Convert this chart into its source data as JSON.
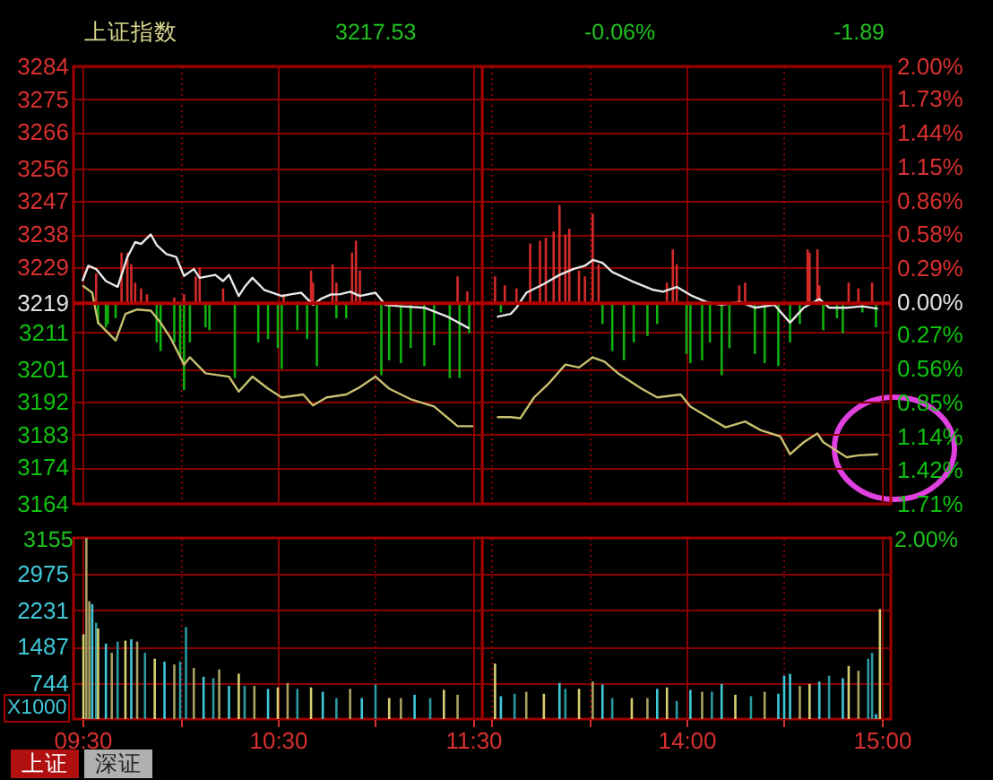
{
  "chart_data": [
    {
      "type": "line",
      "annotations": [
        "上证指数",
        "3217.53",
        "-0.06%",
        "-1.89"
      ],
      "xlim": [
        9.5,
        11.5
      ],
      "xticks": [
        {
          "value": 9.5,
          "label": null
        },
        {
          "value": 10,
          "label": null
        },
        {
          "value": 10.5,
          "label": null
        },
        {
          "value": 11,
          "label": null
        },
        {
          "value": 11.5,
          "label": null
        }
      ],
      "ylim": [
        3164,
        3284
      ],
      "yticks": [
        3164,
        3174,
        3183,
        3192,
        3201,
        3211,
        3219,
        3229,
        3238,
        3247,
        3256,
        3266,
        3275,
        3284
      ],
      "grid": true,
      "tick_labels": "y",
      "ref_lines": [
        {
          "axis": "y",
          "value": 3219,
          "color": "#b00000"
        }
      ],
      "series": [
        {
          "type": "bar",
          "color": "#d42a2a",
          "x": [
            9.57,
            9.7,
            9.73,
            9.75,
            9.77,
            9.8,
            9.83,
            9.97,
            10.02,
            10.08,
            10.1,
            10.22,
            10.53,
            10.67,
            10.68,
            10.78,
            10.8,
            10.88,
            10.9,
            10.92,
            11.42,
            11.47
          ],
          "values": [
            8.2,
            13.9,
            13.9,
            10.7,
            5.7,
            4.1,
            2.5,
            1.6,
            2.5,
            7.4,
            9.8,
            4.1,
            2.5,
            9.0,
            5.7,
            10.7,
            5.7,
            13.9,
            17.2,
            9.0,
            7.4,
            3.3
          ],
          "base": [
            3219,
            3219,
            3219,
            3219,
            3219,
            3219,
            3219,
            3219,
            3219,
            3219,
            3219,
            3219,
            3219,
            3219,
            3219,
            3219,
            3219,
            3219,
            3219,
            3219,
            3219,
            3219
          ]
        },
        {
          "type": "bar",
          "color": "#10b010",
          "x": [
            9.58,
            9.62,
            9.63,
            9.67,
            9.88,
            9.9,
            9.97,
            10,
            10.02,
            10.05,
            10.13,
            10.15,
            10.28,
            10.4,
            10.45,
            10.5,
            10.52,
            10.6,
            10.65,
            10.7,
            10.8,
            10.85,
            11.03,
            11.07,
            11.13,
            11.18,
            11.25,
            11.3,
            11.38,
            11.43,
            11.48
          ],
          "values": [
            -5.7,
            -6.6,
            -5.7,
            -4.1,
            -10.7,
            -13.1,
            -10.7,
            -14.8,
            -23.8,
            -10.7,
            -6.6,
            -7.4,
            -20.5,
            -10.7,
            -9.8,
            -12.3,
            -18.0,
            -7.4,
            -9.8,
            -17.2,
            -4.1,
            -4.1,
            -19.7,
            -15.6,
            -16.4,
            -12.3,
            -17.2,
            -11.5,
            -20.5,
            -20.5,
            -8.2
          ],
          "base": [
            3219,
            3219,
            3219,
            3219,
            3219,
            3219,
            3219,
            3219,
            3219,
            3219,
            3219,
            3219,
            3219,
            3219,
            3219,
            3219,
            3219,
            3219,
            3219,
            3219,
            3219,
            3219,
            3219,
            3219,
            3219,
            3219,
            3219,
            3219,
            3219,
            3219,
            3219
          ]
        },
        {
          "color": "#c8c070",
          "x": [
            9.5,
            9.55,
            9.58,
            9.67,
            9.72,
            9.78,
            9.85,
            9.9,
            9.95,
            10.02,
            10.05,
            10.13,
            10.25,
            10.3,
            10.37,
            10.45,
            10.52,
            10.63,
            10.68,
            10.75,
            10.85,
            10.92,
            11,
            11.07,
            11.18,
            11.3,
            11.42,
            11.5
          ],
          "values": [
            3223.9,
            3221.9,
            3213.7,
            3208.8,
            3216.1,
            3217.3,
            3217.0,
            3213.7,
            3209.6,
            3202.2,
            3204.2,
            3199.8,
            3198.9,
            3194.8,
            3198.9,
            3195.6,
            3193.2,
            3194.0,
            3191.0,
            3193.2,
            3194.0,
            3196.0,
            3198.9,
            3195.6,
            3192.7,
            3190.7,
            3185.3,
            3185.3
          ]
        },
        {
          "color": "#e8e8e8",
          "x": [
            9.5,
            9.53,
            9.57,
            9.62,
            9.68,
            9.73,
            9.77,
            9.8,
            9.85,
            9.88,
            9.93,
            9.98,
            10.02,
            10.07,
            10.1,
            10.18,
            10.22,
            10.25,
            10.3,
            10.33,
            10.37,
            10.43,
            10.52,
            10.57,
            10.62,
            10.68,
            10.72,
            10.77,
            10.82,
            10.87,
            10.92,
            11,
            11.05,
            11.13,
            11.25,
            11.37,
            11.48
          ],
          "values": [
            3225.1,
            3229.3,
            3228.4,
            3225.1,
            3223.5,
            3231.7,
            3235.8,
            3235.3,
            3237.9,
            3235.0,
            3232.5,
            3231.7,
            3226.5,
            3228.4,
            3226.0,
            3226.8,
            3225.1,
            3226.8,
            3221.0,
            3223.5,
            3226.0,
            3222.7,
            3221.0,
            3221.5,
            3221.9,
            3218.6,
            3220.2,
            3221.4,
            3221.5,
            3222.2,
            3221.0,
            3221.9,
            3218.6,
            3218.2,
            3217.8,
            3215.3,
            3212.1
          ]
        }
      ]
    },
    {
      "type": "line",
      "xlim": [
        13,
        15
      ],
      "xticks": [
        {
          "value": 13,
          "label": null
        },
        {
          "value": 13.5,
          "label": null
        },
        {
          "value": 14,
          "label": null
        },
        {
          "value": 14.5,
          "label": null
        },
        {
          "value": 15,
          "label": null
        }
      ],
      "ylim": [
        3164,
        3284
      ],
      "yticks": [
        3164,
        3174,
        3183,
        3192,
        3201,
        3211,
        3219,
        3229,
        3238,
        3247,
        3256,
        3266,
        3275,
        3284
      ],
      "y2lim": [
        -1.71,
        2.0
      ],
      "y2ticks": [
        {
          "value": -1.71,
          "label": "1.71%"
        },
        {
          "value": -1.42,
          "label": "1.42%"
        },
        {
          "value": -1.14,
          "label": "1.14%"
        },
        {
          "value": -0.85,
          "label": "0.85%"
        },
        {
          "value": -0.56,
          "label": "0.56%"
        },
        {
          "value": -0.27,
          "label": "0.27%"
        },
        {
          "value": 0,
          "label": "0.00%"
        },
        {
          "value": 0.29,
          "label": "0.29%"
        },
        {
          "value": 0.58,
          "label": "0.58%"
        },
        {
          "value": 0.86,
          "label": "0.86%"
        },
        {
          "value": 1.15,
          "label": "1.15%"
        },
        {
          "value": 1.44,
          "label": "1.44%"
        },
        {
          "value": 1.73,
          "label": "1.73%"
        },
        {
          "value": 2.0,
          "label": "2.00%"
        }
      ],
      "grid": true,
      "tick_labels": false,
      "ref_lines": [
        {
          "axis": "y",
          "value": 3219,
          "color": "#b00000"
        }
      ],
      "series": [
        {
          "type": "bar",
          "color": "#d42a2a",
          "x": [
            13.02,
            13.07,
            13.13,
            13.2,
            13.25,
            13.28,
            13.32,
            13.35,
            13.38,
            13.4,
            13.45,
            13.48,
            13.52,
            13.55,
            13.9,
            13.93,
            13.95,
            14.27,
            14.3,
            14.62,
            14.63,
            14.67,
            14.68,
            14.83,
            14.88,
            14.95
          ],
          "values": [
            7.4,
            4.9,
            4.1,
            16.4,
            17.2,
            18.0,
            19.7,
            27.0,
            18.9,
            20.5,
            9.0,
            7.4,
            24.6,
            10.7,
            5.7,
            14.8,
            10.7,
            4.9,
            5.7,
            14.8,
            13.9,
            14.8,
            4.9,
            5.7,
            4.1,
            5.7
          ],
          "base": [
            3219,
            3219,
            3219,
            3219,
            3219,
            3219,
            3219,
            3219,
            3219,
            3219,
            3219,
            3219,
            3219,
            3219,
            3219,
            3219,
            3219,
            3219,
            3219,
            3219,
            3219,
            3219,
            3219,
            3219,
            3219,
            3219
          ]
        },
        {
          "type": "bar",
          "color": "#10b010",
          "x": [
            13.05,
            13.57,
            13.62,
            13.68,
            13.73,
            13.8,
            13.85,
            14,
            14.02,
            14.08,
            14.12,
            14.18,
            14.22,
            14.35,
            14.4,
            14.47,
            14.53,
            14.58,
            14.7,
            14.77,
            14.8,
            14.9,
            14.97
          ],
          "values": [
            -2.5,
            -5.7,
            -13.1,
            -15.6,
            -10.7,
            -9.0,
            -5.7,
            -13.9,
            -16.4,
            -15.6,
            -10.7,
            -19.7,
            -12.3,
            -13.9,
            -16.4,
            -17.2,
            -10.7,
            -5.7,
            -7.4,
            -4.1,
            -8.2,
            -2.5,
            -6.6
          ],
          "base": [
            3219,
            3219,
            3219,
            3219,
            3219,
            3219,
            3219,
            3219,
            3219,
            3219,
            3219,
            3219,
            3219,
            3219,
            3219,
            3219,
            3219,
            3219,
            3219,
            3219,
            3219,
            3219,
            3219
          ]
        },
        {
          "color": "#c8c070",
          "x": [
            13.03,
            13.1,
            13.15,
            13.22,
            13.3,
            13.38,
            13.45,
            13.52,
            13.58,
            13.65,
            13.77,
            13.85,
            13.97,
            14.02,
            14.12,
            14.2,
            14.3,
            14.38,
            14.48,
            14.53,
            14.6,
            14.67,
            14.7,
            14.82,
            14.88,
            14.98
          ],
          "values": [
            3187.8,
            3187.8,
            3187.5,
            3193.2,
            3197.3,
            3202.2,
            3201.4,
            3204.2,
            3203.0,
            3199.8,
            3195.6,
            3193.2,
            3194.0,
            3190.7,
            3187.5,
            3185.0,
            3186.6,
            3184.2,
            3182.5,
            3177.6,
            3180.9,
            3183.3,
            3180.9,
            3176.8,
            3177.3,
            3177.6
          ]
        },
        {
          "color": "#e8e8e8",
          "x": [
            13.03,
            13.1,
            13.13,
            13.18,
            13.27,
            13.35,
            13.42,
            13.48,
            13.52,
            13.57,
            13.62,
            13.72,
            13.83,
            13.88,
            13.95,
            14.03,
            14.1,
            14.18,
            14.27,
            14.35,
            14.45,
            14.53,
            14.6,
            14.68,
            14.73,
            14.82,
            14.9,
            14.98
          ],
          "values": [
            3215.3,
            3216.1,
            3217.8,
            3221.9,
            3224.3,
            3226.8,
            3228.4,
            3229.3,
            3230.9,
            3230.1,
            3227.6,
            3225.1,
            3222.7,
            3222.2,
            3223.5,
            3221.0,
            3219.4,
            3218.6,
            3219.4,
            3217.8,
            3218.6,
            3213.7,
            3217.8,
            3220.2,
            3217.8,
            3217.8,
            3218.2,
            3217.5
          ]
        }
      ]
    },
    {
      "type": "bar",
      "annotations": [
        "3155",
        "X1000",
        "上证",
        "深证"
      ],
      "xlim": [
        9.5,
        11.5
      ],
      "xticks": [
        {
          "value": 9.5,
          "label": "09:30"
        },
        {
          "value": 10,
          "label": null
        },
        {
          "value": 10.5,
          "label": "10:30"
        },
        {
          "value": 11,
          "label": null
        },
        {
          "value": 11.5,
          "label": "11:30"
        }
      ],
      "ylim": [
        0,
        3720
      ],
      "yticks": [
        744,
        1487,
        2231,
        2975
      ],
      "grid": true,
      "x": [
        9.505,
        9.52,
        9.535,
        9.55,
        9.57,
        9.58,
        9.62,
        9.65,
        9.68,
        9.72,
        9.75,
        9.78,
        9.82,
        9.87,
        9.92,
        9.97,
        10,
        10.03,
        10.07,
        10.12,
        10.17,
        10.2,
        10.25,
        10.3,
        10.33,
        10.38,
        10.45,
        10.5,
        10.55,
        10.6,
        10.67,
        10.73,
        10.8,
        10.87,
        10.93,
        11,
        11.07,
        11.13,
        11.2,
        11.28,
        11.35,
        11.42
      ],
      "values": [
        1740,
        3720,
        2420,
        2360,
        1980,
        1860,
        1550,
        1360,
        1590,
        1610,
        1640,
        1590,
        1360,
        1240,
        1180,
        1120,
        1180,
        1890,
        1050,
        870,
        840,
        1020,
        680,
        930,
        680,
        680,
        620,
        650,
        740,
        620,
        650,
        560,
        430,
        620,
        430,
        710,
        430,
        430,
        500,
        430,
        600,
        500
      ],
      "colors": [
        "#d8d070",
        "#a8a060",
        "#a8a060",
        "#40c8d8",
        "#2a9aa0",
        "#d8d070",
        "#40c8d8",
        "#a8a060",
        "#2a9aa0",
        "#d8d070",
        "#40c8d8",
        "#a8a060",
        "#2a9aa0",
        "#d8d070",
        "#40c8d8",
        "#a8a060",
        "#2a9aa0",
        "#2a9aa0",
        "#a8a060",
        "#40c8d8",
        "#2a9aa0",
        "#a8a060",
        "#40c8d8",
        "#d8d070",
        "#2a9aa0",
        "#a8a060",
        "#40c8d8",
        "#d8d070",
        "#a8a060",
        "#2a9aa0",
        "#d8d070",
        "#40c8d8",
        "#2a9aa0",
        "#a8a060",
        "#40c8d8",
        "#2a9aa0",
        "#d8d070",
        "#a8a060",
        "#40c8d8",
        "#2a9aa0",
        "#d8d070",
        "#a8a060"
      ]
    },
    {
      "type": "bar",
      "annotations": [
        "2.00%"
      ],
      "tick_labels": "x",
      "xlim": [
        13,
        15
      ],
      "xticks": [
        {
          "value": 13,
          "label": null
        },
        {
          "value": 13.5,
          "label": null
        },
        {
          "value": 14,
          "label": "14:00"
        },
        {
          "value": 14.5,
          "label": null
        },
        {
          "value": 15,
          "label": "15:00"
        }
      ],
      "ylim": [
        0,
        3720
      ],
      "yticks": [
        744,
        1487,
        2231,
        2975
      ],
      "grid": true,
      "x": [
        13.02,
        13.05,
        13.12,
        13.18,
        13.27,
        13.35,
        13.38,
        13.45,
        13.52,
        13.57,
        13.62,
        13.72,
        13.8,
        13.85,
        13.9,
        13.95,
        14.02,
        14.08,
        14.13,
        14.18,
        14.25,
        14.33,
        14.4,
        14.47,
        14.5,
        14.53,
        14.58,
        14.63,
        14.68,
        14.73,
        14.8,
        14.83,
        14.88,
        14.93,
        14.95,
        14.97,
        14.99
      ],
      "values": [
        1140,
        470,
        520,
        560,
        520,
        740,
        620,
        620,
        770,
        710,
        430,
        430,
        430,
        620,
        650,
        370,
        600,
        560,
        560,
        720,
        500,
        470,
        560,
        520,
        890,
        930,
        680,
        720,
        770,
        890,
        840,
        1090,
        990,
        1240,
        1360,
        100,
        2260
      ],
      "colors": [
        "#d8d070",
        "#40c8d8",
        "#2a9aa0",
        "#a8a060",
        "#d8d070",
        "#40c8d8",
        "#2a9aa0",
        "#d8d070",
        "#a8a060",
        "#40c8d8",
        "#2a9aa0",
        "#d8d070",
        "#a8a060",
        "#40c8d8",
        "#d8d070",
        "#2a9aa0",
        "#40c8d8",
        "#a8a060",
        "#2a9aa0",
        "#40c8d8",
        "#d8d070",
        "#2a9aa0",
        "#a8a060",
        "#40c8d8",
        "#40c8d8",
        "#40c8d8",
        "#a8a060",
        "#d8d070",
        "#40c8d8",
        "#2a9aa0",
        "#40c8d8",
        "#d8d070",
        "#a8a060",
        "#2a9aa0",
        "#2a9aa0",
        "#40c8d8",
        "#d8d070"
      ]
    }
  ]
}
